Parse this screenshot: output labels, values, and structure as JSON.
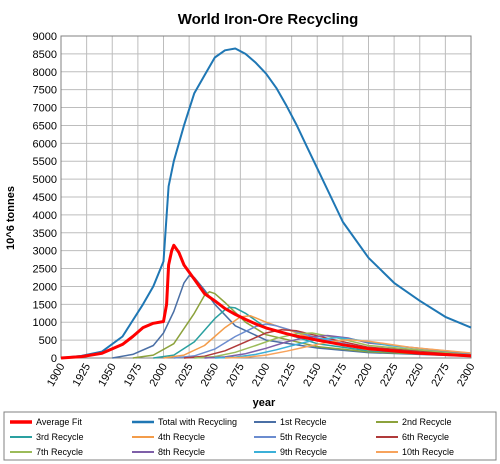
{
  "chart_data": {
    "type": "line",
    "title": "World Iron-Ore Recycling",
    "xlabel": "year",
    "ylabel": "10^6 tonnes",
    "xlim": [
      1900,
      2300
    ],
    "ylim": [
      0,
      9000
    ],
    "x_ticks": [
      "1900",
      "1925",
      "1950",
      "1975",
      "2000",
      "2025",
      "2050",
      "2075",
      "2100",
      "2125",
      "2150",
      "2175",
      "2200",
      "2225",
      "2250",
      "2275",
      "2300"
    ],
    "y_ticks": [
      "0",
      "500",
      "1000",
      "1500",
      "2000",
      "2500",
      "3000",
      "3500",
      "4000",
      "4500",
      "5000",
      "5500",
      "6000",
      "6500",
      "7000",
      "7500",
      "8000",
      "8500",
      "9000"
    ],
    "grid": true,
    "legend_position": "bottom",
    "series": [
      {
        "name": "Average Fit",
        "color": "#ff0000",
        "width": 3,
        "x": [
          1900,
          1920,
          1940,
          1960,
          1970,
          1980,
          1990,
          2000,
          2003,
          2005,
          2008,
          2010,
          2015,
          2020,
          2030,
          2040,
          2050,
          2060,
          2070,
          2080,
          2090,
          2100,
          2110,
          2120,
          2130,
          2140,
          2150,
          2175,
          2200,
          2250,
          2300
        ],
        "y": [
          0,
          40,
          130,
          380,
          600,
          850,
          970,
          1020,
          1500,
          2600,
          3000,
          3150,
          2950,
          2600,
          2200,
          1800,
          1600,
          1380,
          1220,
          1080,
          950,
          840,
          760,
          680,
          610,
          560,
          500,
          370,
          260,
          130,
          60
        ]
      },
      {
        "name": "Total with Recycling",
        "color": "#1f77b4",
        "width": 2,
        "x": [
          1900,
          1920,
          1940,
          1960,
          1980,
          1990,
          2000,
          2005,
          2010,
          2020,
          2030,
          2040,
          2050,
          2060,
          2070,
          2080,
          2090,
          2100,
          2110,
          2120,
          2130,
          2140,
          2150,
          2175,
          2200,
          2225,
          2250,
          2275,
          2300
        ],
        "y": [
          0,
          60,
          180,
          600,
          1500,
          2000,
          2700,
          4800,
          5500,
          6500,
          7400,
          7900,
          8400,
          8600,
          8650,
          8500,
          8250,
          7950,
          7550,
          7050,
          6500,
          5900,
          5300,
          3800,
          2800,
          2100,
          1600,
          1150,
          850
        ]
      },
      {
        "name": "1st Recycle",
        "color": "#4a6fa5",
        "width": 1.5,
        "x": [
          1950,
          1970,
          1990,
          2000,
          2010,
          2020,
          2025,
          2030,
          2040,
          2050,
          2070,
          2100,
          2150,
          2200,
          2300
        ],
        "y": [
          0,
          100,
          350,
          700,
          1300,
          2100,
          2300,
          2250,
          1900,
          1500,
          900,
          500,
          280,
          150,
          50
        ]
      },
      {
        "name": "2nd Recycle",
        "color": "#8ca23c",
        "width": 1.5,
        "x": [
          1970,
          1990,
          2010,
          2030,
          2040,
          2045,
          2050,
          2060,
          2080,
          2100,
          2150,
          2200,
          2300
        ],
        "y": [
          0,
          80,
          400,
          1250,
          1750,
          1850,
          1800,
          1550,
          1000,
          650,
          320,
          170,
          60
        ]
      },
      {
        "name": "3rd Recycle",
        "color": "#2aa0a0",
        "width": 1.5,
        "x": [
          1990,
          2010,
          2030,
          2050,
          2060,
          2065,
          2070,
          2080,
          2100,
          2150,
          2200,
          2300
        ],
        "y": [
          0,
          80,
          450,
          1100,
          1350,
          1420,
          1400,
          1250,
          850,
          400,
          200,
          70
        ]
      },
      {
        "name": "4th Recycle",
        "color": "#f39c4a",
        "width": 1.5,
        "x": [
          2000,
          2020,
          2040,
          2060,
          2075,
          2085,
          2100,
          2150,
          2200,
          2300
        ],
        "y": [
          0,
          80,
          350,
          850,
          1150,
          1180,
          1000,
          500,
          230,
          70
        ]
      },
      {
        "name": "5th Recycle",
        "color": "#6b8ccf",
        "width": 1.5,
        "x": [
          2010,
          2030,
          2050,
          2070,
          2090,
          2100,
          2110,
          2150,
          2200,
          2300
        ],
        "y": [
          0,
          60,
          250,
          600,
          880,
          950,
          900,
          560,
          260,
          80
        ]
      },
      {
        "name": "6th Recycle",
        "color": "#b03a3a",
        "width": 1.5,
        "x": [
          2020,
          2040,
          2060,
          2080,
          2100,
          2115,
          2130,
          2160,
          2200,
          2300
        ],
        "y": [
          0,
          50,
          200,
          450,
          700,
          790,
          760,
          550,
          300,
          90
        ]
      },
      {
        "name": "7th Recycle",
        "color": "#9bbb59",
        "width": 1.5,
        "x": [
          2030,
          2050,
          2070,
          2090,
          2110,
          2130,
          2145,
          2170,
          2200,
          2300
        ],
        "y": [
          0,
          40,
          160,
          350,
          550,
          680,
          700,
          560,
          350,
          100
        ]
      },
      {
        "name": "8th Recycle",
        "color": "#7e5fa8",
        "width": 1.5,
        "x": [
          2040,
          2060,
          2080,
          2100,
          2120,
          2140,
          2160,
          2180,
          2200,
          2300
        ],
        "y": [
          0,
          30,
          120,
          270,
          450,
          580,
          630,
          560,
          420,
          120
        ]
      },
      {
        "name": "9th Recycle",
        "color": "#3bb0d8",
        "width": 1.5,
        "x": [
          2050,
          2070,
          2090,
          2110,
          2130,
          2150,
          2170,
          2190,
          2220,
          2300
        ],
        "y": [
          0,
          25,
          100,
          230,
          380,
          520,
          570,
          500,
          350,
          130
        ]
      },
      {
        "name": "10th Recycle",
        "color": "#f7a35c",
        "width": 1.5,
        "x": [
          2060,
          2080,
          2100,
          2120,
          2140,
          2160,
          2180,
          2200,
          2240,
          2300
        ],
        "y": [
          0,
          20,
          80,
          190,
          320,
          440,
          510,
          470,
          300,
          140
        ]
      }
    ]
  }
}
